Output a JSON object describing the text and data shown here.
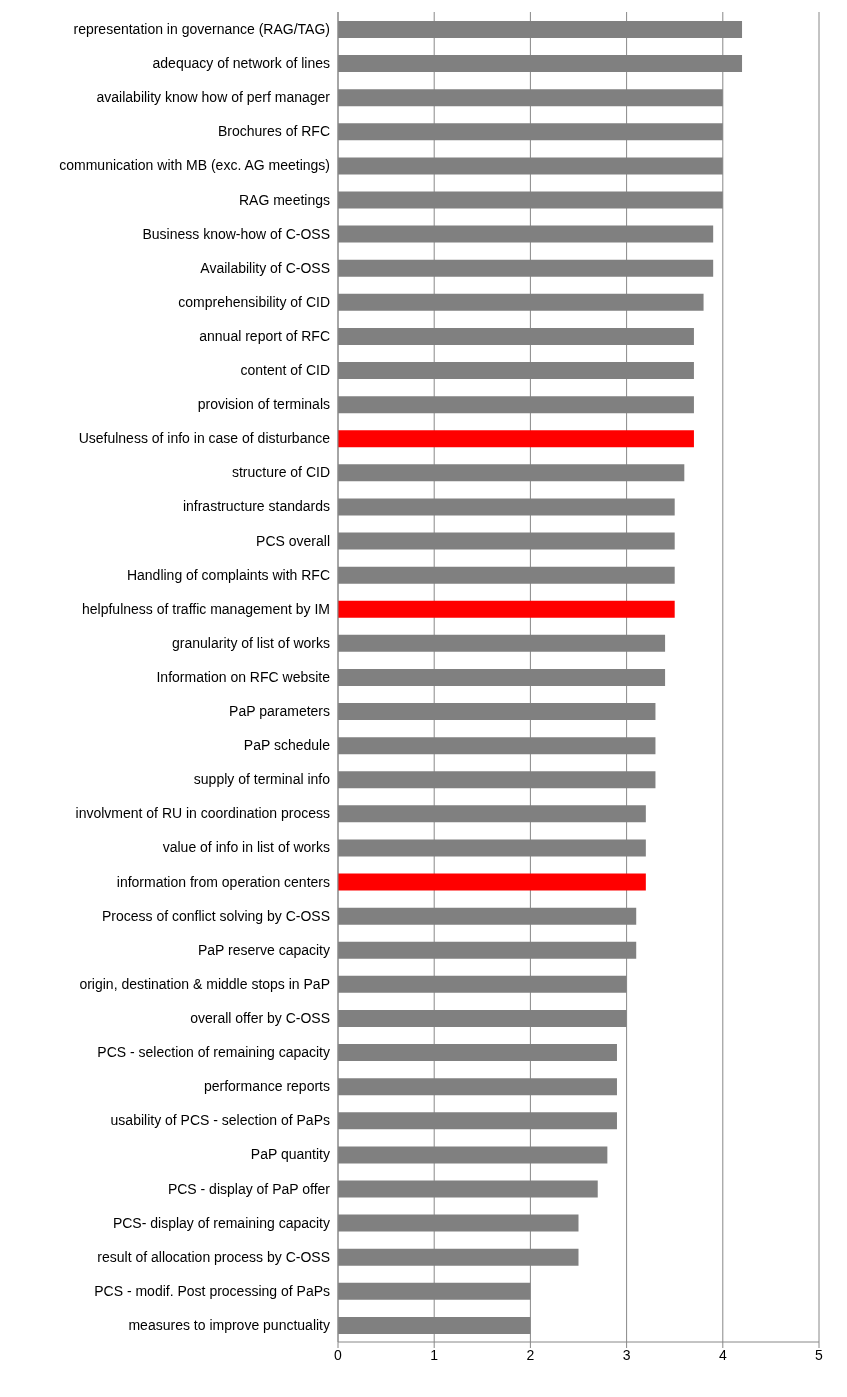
{
  "chart_data": {
    "type": "bar",
    "orientation": "horizontal",
    "categories": [
      "representation in governance (RAG/TAG)",
      "adequacy of network of lines",
      "availability know how of perf manager",
      "Brochures of RFC",
      "communication with MB (exc. AG meetings)",
      "RAG meetings",
      "Business know-how of C-OSS",
      "Availability of C-OSS",
      "comprehensibility of CID",
      "annual report of RFC",
      "content of CID",
      "provision of terminals",
      "Usefulness of info in case of disturbance",
      "structure of CID",
      "infrastructure standards",
      "PCS overall",
      "Handling of complaints with RFC",
      "helpfulness of traffic management by IM",
      "granularity of list of works",
      "Information on RFC website",
      "PaP parameters",
      "PaP schedule",
      "supply of terminal info",
      "involvment of RU in coordination process",
      "value of info in list of works",
      "information from operation centers",
      "Process of conflict solving by C-OSS",
      "PaP reserve capacity",
      "origin, destination & middle stops in PaP",
      "overall offer by C-OSS",
      "PCS - selection of remaining capacity",
      "performance reports",
      "usability of PCS - selection of PaPs",
      "PaP quantity",
      "PCS - display of PaP offer",
      "PCS- display of remaining capacity",
      "result of allocation process by C-OSS",
      "PCS - modif. Post processing of PaPs",
      "measures to improve punctuality"
    ],
    "values": [
      4.2,
      4.2,
      4.0,
      4.0,
      4.0,
      4.0,
      3.9,
      3.9,
      3.8,
      3.7,
      3.7,
      3.7,
      3.7,
      3.6,
      3.5,
      3.5,
      3.5,
      3.5,
      3.4,
      3.4,
      3.3,
      3.3,
      3.3,
      3.2,
      3.2,
      3.2,
      3.1,
      3.1,
      3.0,
      3.0,
      2.9,
      2.9,
      2.9,
      2.8,
      2.7,
      2.5,
      2.5,
      2.0,
      2.0
    ],
    "colors": [
      "#808080",
      "#808080",
      "#808080",
      "#808080",
      "#808080",
      "#808080",
      "#808080",
      "#808080",
      "#808080",
      "#808080",
      "#808080",
      "#808080",
      "#ff0000",
      "#808080",
      "#808080",
      "#808080",
      "#808080",
      "#ff0000",
      "#808080",
      "#808080",
      "#808080",
      "#808080",
      "#808080",
      "#808080",
      "#808080",
      "#ff0000",
      "#808080",
      "#808080",
      "#808080",
      "#808080",
      "#808080",
      "#808080",
      "#808080",
      "#808080",
      "#808080",
      "#808080",
      "#808080",
      "#808080",
      "#808080"
    ],
    "xlim": [
      0,
      5
    ],
    "xticks": [
      0,
      1,
      2,
      3,
      4,
      5
    ],
    "grid": "x",
    "legend": false
  }
}
